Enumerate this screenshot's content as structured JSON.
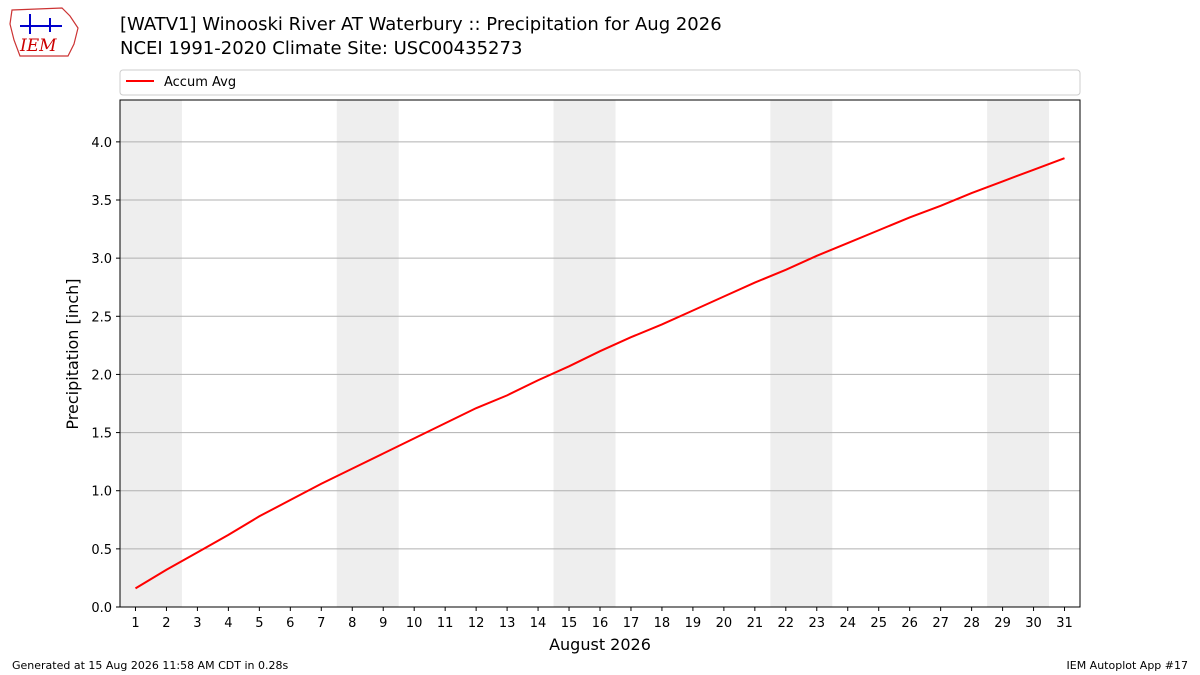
{
  "logo_text": "IEM",
  "chart_data": {
    "type": "line",
    "title": "[WATV1] Winooski River  AT Waterbury :: Precipitation for Aug 2026",
    "subtitle": "NCEI 1991-2020 Climate Site: USC00435273",
    "x_label": "August 2026",
    "y_label": "Precipitation [inch]",
    "x": [
      1,
      2,
      3,
      4,
      5,
      6,
      7,
      8,
      9,
      10,
      11,
      12,
      13,
      14,
      15,
      16,
      17,
      18,
      19,
      20,
      21,
      22,
      23,
      24,
      25,
      26,
      27,
      28,
      29,
      30,
      31
    ],
    "series": [
      {
        "name": "Accum Avg",
        "color": "#ff0000",
        "values": [
          0.16,
          0.32,
          0.47,
          0.62,
          0.78,
          0.92,
          1.06,
          1.19,
          1.32,
          1.45,
          1.58,
          1.71,
          1.82,
          1.95,
          2.07,
          2.2,
          2.32,
          2.43,
          2.55,
          2.67,
          2.79,
          2.9,
          3.02,
          3.13,
          3.24,
          3.35,
          3.45,
          3.56,
          3.66,
          3.76,
          3.86
        ]
      }
    ],
    "xlim": [
      0.5,
      31.5
    ],
    "ylim": [
      0,
      4.36
    ],
    "xticks": [
      1,
      2,
      3,
      4,
      5,
      6,
      7,
      8,
      9,
      10,
      11,
      12,
      13,
      14,
      15,
      16,
      17,
      18,
      19,
      20,
      21,
      22,
      23,
      24,
      25,
      26,
      27,
      28,
      29,
      30,
      31
    ],
    "yticks": [
      {
        "value": 0,
        "label": "0.0"
      },
      0.5,
      {
        "value": 1,
        "label": "1.0"
      },
      1.5,
      {
        "value": 2,
        "label": "2.0"
      },
      2.5,
      {
        "value": 3,
        "label": "3.0"
      },
      3.5,
      {
        "value": 4,
        "label": "4.0"
      }
    ],
    "shaded_spans": [
      [
        0.5,
        2.5
      ],
      [
        7.5,
        9.5
      ],
      [
        14.5,
        16.5
      ],
      [
        21.5,
        23.5
      ],
      [
        28.5,
        30.5
      ]
    ],
    "shade_color": "#eeeeee",
    "grid": "y",
    "legend": "top",
    "footer_left": "Generated at 15 Aug 2026 11:58 AM CDT in 0.28s",
    "footer_right": "IEM Autoplot App #17"
  }
}
